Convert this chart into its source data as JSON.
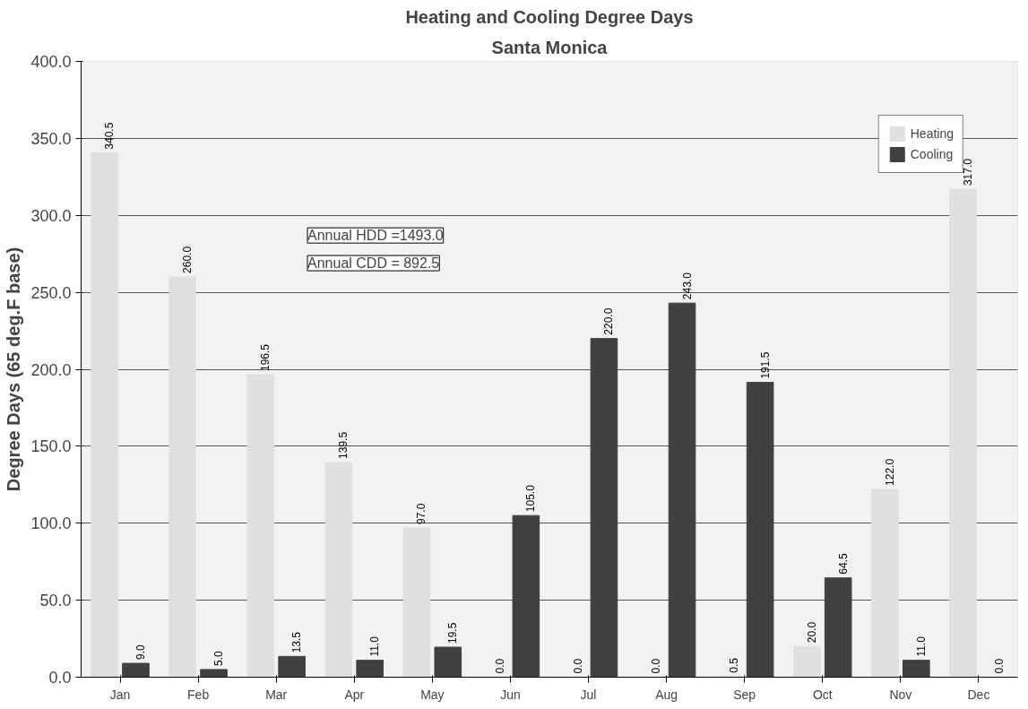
{
  "chart_data": {
    "type": "bar",
    "title": "Heating and Cooling Degree Days",
    "subtitle": "Santa Monica",
    "ylabel": "Degree Days (65 deg.F base)",
    "categories": [
      "Jan",
      "Feb",
      "Mar",
      "Apr",
      "May",
      "Jun",
      "Jul",
      "Aug",
      "Sep",
      "Oct",
      "Nov",
      "Dec"
    ],
    "series": [
      {
        "name": "Heating",
        "color": "#e0e0e0",
        "values": [
          340.5,
          260.0,
          196.5,
          139.5,
          97.0,
          0.0,
          0.0,
          0.0,
          0.5,
          20.0,
          122.0,
          317.0
        ],
        "value_labels": [
          "340.5",
          "260.0",
          "196.5",
          "139.5",
          "97.0",
          "0.0",
          "0.0",
          "0.0",
          "0.5",
          "20.0",
          "122.0",
          "317.0"
        ]
      },
      {
        "name": "Cooling",
        "color": "#404040",
        "values": [
          9.0,
          5.0,
          13.5,
          11.0,
          19.5,
          105.0,
          220.0,
          243.0,
          191.5,
          64.5,
          11.0,
          0.0
        ],
        "value_labels": [
          "9.0",
          "5.0",
          "13.5",
          "11.0",
          "19.5",
          "105.0",
          "220.0",
          "243.0",
          "191.5",
          "64.5",
          "11.0",
          "0.0"
        ]
      }
    ],
    "ylim": [
      0,
      400
    ],
    "yticks": [
      {
        "value": 0,
        "label": "0.0"
      },
      {
        "value": 50,
        "label": "50.0"
      },
      {
        "value": 100,
        "label": "100.0"
      },
      {
        "value": 150,
        "label": "150.0"
      },
      {
        "value": 200,
        "label": "200.0"
      },
      {
        "value": 250,
        "label": "250.0"
      },
      {
        "value": 300,
        "label": "300.0"
      },
      {
        "value": 350,
        "label": "350.0"
      },
      {
        "value": 400,
        "label": "400.0"
      }
    ],
    "grid": "y",
    "legend": "top right",
    "annotations": [
      "Annual HDD =1493.0",
      "Annual CDD = 892.5"
    ]
  }
}
